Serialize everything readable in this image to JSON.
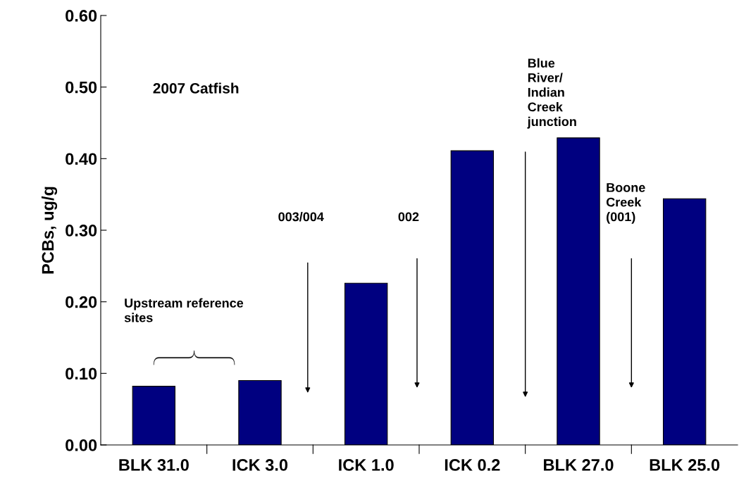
{
  "chart_data": {
    "type": "bar",
    "ylabel": "PCBs, ug/g",
    "categories": [
      "BLK 31.0",
      "ICK 3.0",
      "ICK 1.0",
      "ICK 0.2",
      "BLK 27.0",
      "BLK 25.0"
    ],
    "values": [
      0.082,
      0.09,
      0.226,
      0.411,
      0.429,
      0.344
    ],
    "color": "#000080",
    "ylim": [
      0,
      0.6
    ],
    "yticks": [
      {
        "value": 0,
        "label": "0.00"
      },
      {
        "value": 0.1,
        "label": "0.10"
      },
      {
        "value": 0.2,
        "label": "0.20"
      },
      {
        "value": 0.3,
        "label": "0.30"
      },
      {
        "value": 0.4,
        "label": "0.40"
      },
      {
        "value": 0.5,
        "label": "0.50"
      },
      {
        "value": 0.6,
        "label": "0.60"
      }
    ],
    "annotations": [
      "2007 Catfish",
      "Upstream reference\nsites",
      "003/004",
      "002",
      "Blue\nRiver/\nIndian\nCreek\njunction",
      "Boone\nCreek\n(001)"
    ],
    "grid": false,
    "legend": false
  }
}
